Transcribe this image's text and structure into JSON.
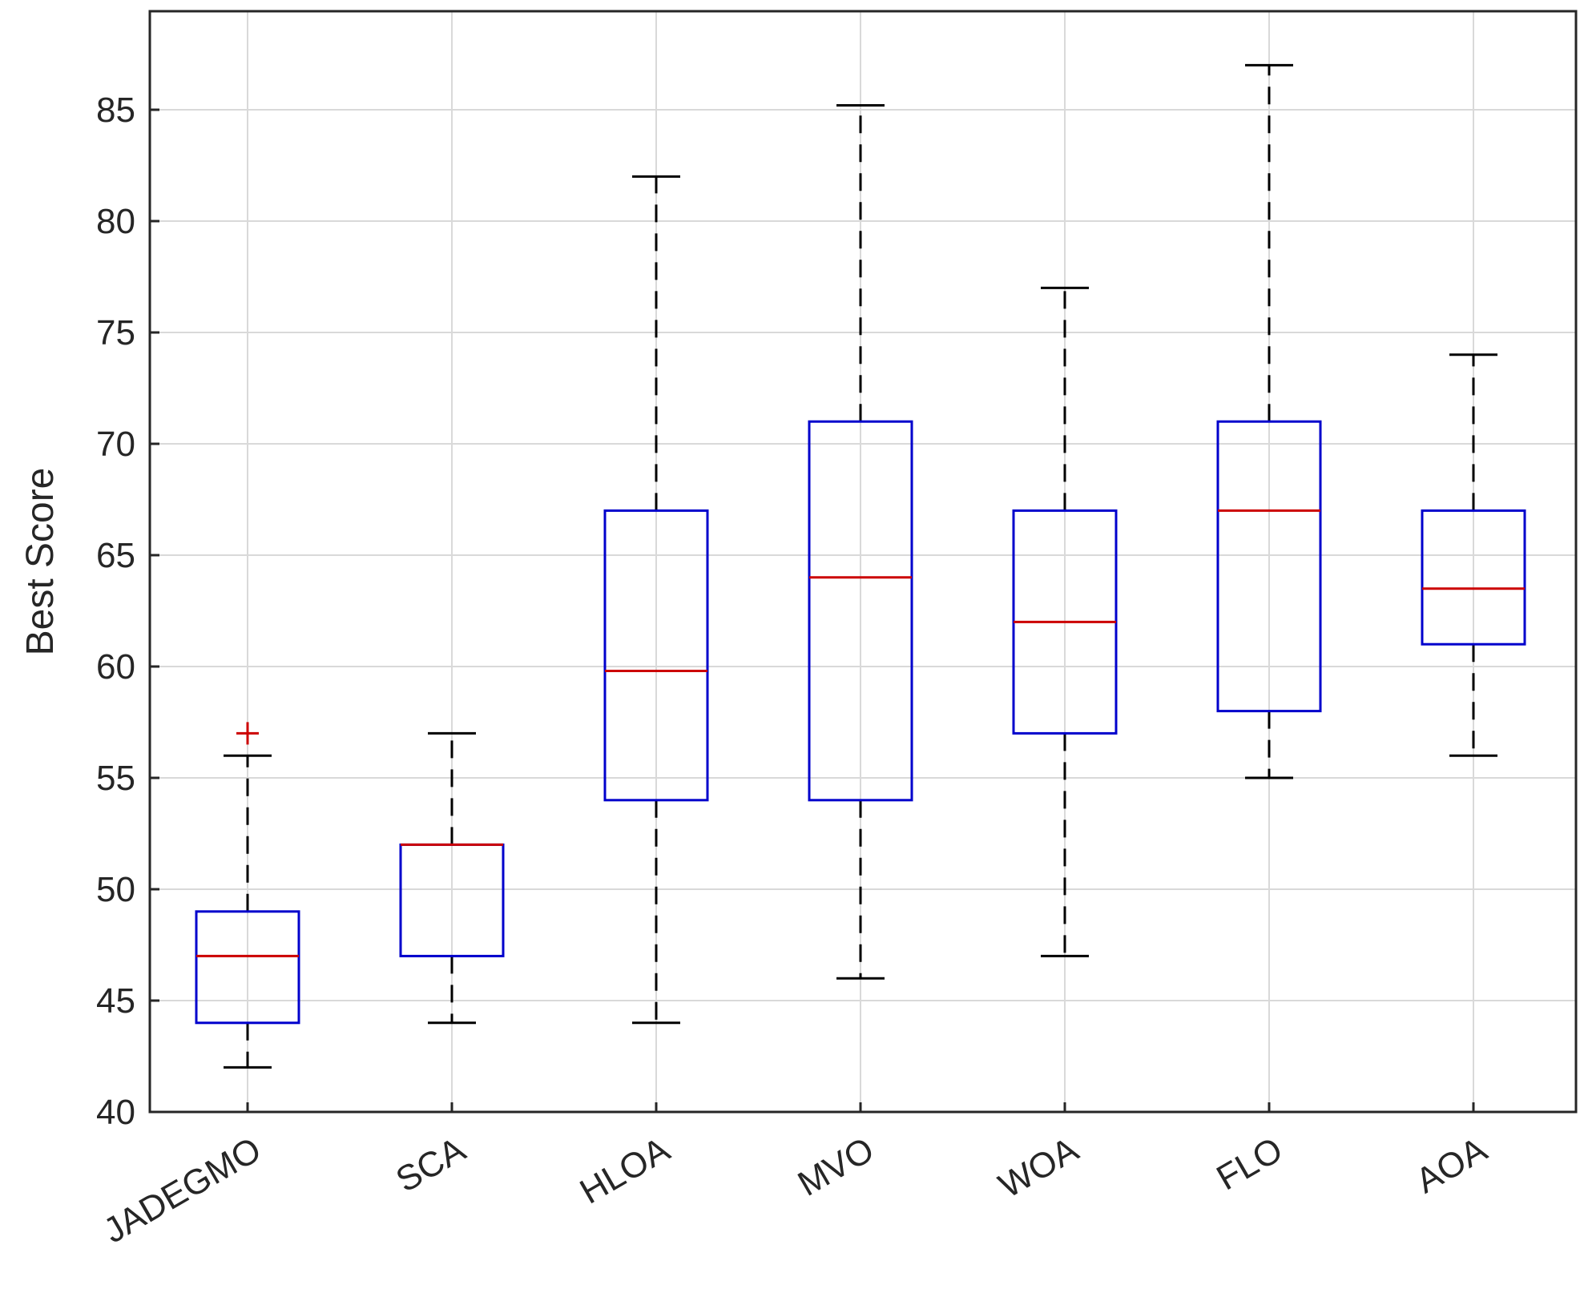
{
  "chart_data": {
    "type": "boxplot",
    "title": "",
    "xlabel": "",
    "ylabel": "Best Score",
    "ylim": [
      40,
      89
    ],
    "yticks": [
      40,
      45,
      50,
      55,
      60,
      65,
      70,
      75,
      80,
      85
    ],
    "grid": true,
    "categories": [
      "JADEGMO",
      "SCA",
      "HLOA",
      "MVO",
      "WOA",
      "FLO",
      "AOA"
    ],
    "boxes": [
      {
        "name": "JADEGMO",
        "whisker_low": 42,
        "q1": 44,
        "median": 47,
        "q3": 49,
        "whisker_high": 56,
        "outliers": [
          57
        ]
      },
      {
        "name": "SCA",
        "whisker_low": 44,
        "q1": 47,
        "median": 52,
        "q3": 52,
        "whisker_high": 57,
        "outliers": []
      },
      {
        "name": "HLOA",
        "whisker_low": 44,
        "q1": 54,
        "median": 59.8,
        "q3": 67,
        "whisker_high": 82,
        "outliers": []
      },
      {
        "name": "MVO",
        "whisker_low": 46,
        "q1": 54,
        "median": 64,
        "q3": 71,
        "whisker_high": 85.2,
        "outliers": []
      },
      {
        "name": "WOA",
        "whisker_low": 47,
        "q1": 57,
        "median": 62,
        "q3": 67,
        "whisker_high": 77,
        "outliers": []
      },
      {
        "name": "FLO",
        "whisker_low": 55,
        "q1": 58,
        "median": 67,
        "q3": 71,
        "whisker_high": 87,
        "outliers": []
      },
      {
        "name": "AOA",
        "whisker_low": 56,
        "q1": 61,
        "median": 63.5,
        "q3": 67,
        "whisker_high": 74,
        "outliers": []
      }
    ],
    "colors": {
      "box": "#0000cc",
      "median": "#cc0000",
      "whisker": "#000000",
      "outlier": "#cc0000",
      "grid": "#d9d9d9"
    }
  }
}
